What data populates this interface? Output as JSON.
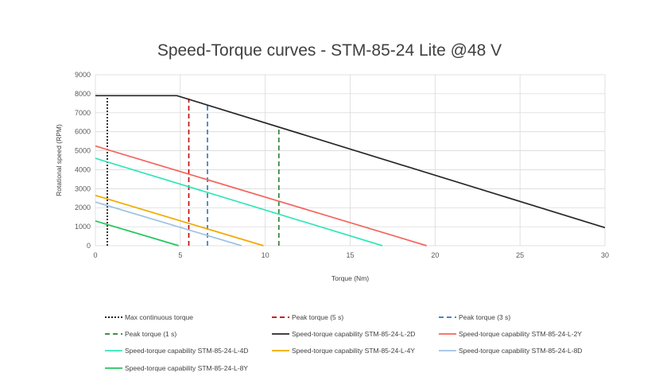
{
  "chart_data": {
    "type": "line",
    "title": "Speed-Torque curves - STM-85-24 Lite @48 V",
    "xlabel": "Torque (Nm)",
    "ylabel": "Rotational speed (RPM)",
    "xlim": [
      0,
      30
    ],
    "ylim": [
      0,
      9000
    ],
    "xticks": [
      "0",
      "5",
      "10",
      "15",
      "20",
      "25",
      "30"
    ],
    "yticks": [
      "0",
      "1000",
      "2000",
      "3000",
      "4000",
      "5000",
      "6000",
      "7000",
      "8000",
      "9000"
    ],
    "grid": true,
    "legend_position": "bottom",
    "series": [
      {
        "name": "Max continuous torque",
        "color": "#000000",
        "dash": "dot",
        "points": [
          [
            0.7,
            0
          ],
          [
            0.7,
            7900
          ]
        ]
      },
      {
        "name": "Peak torque (5 s)",
        "color": "#C00000",
        "dash": "dash",
        "points": [
          [
            5.5,
            0
          ],
          [
            5.5,
            7750
          ]
        ]
      },
      {
        "name": "Peak torque (3 s)",
        "color": "#2E75B6",
        "dash": "dash",
        "points": [
          [
            6.6,
            0
          ],
          [
            6.6,
            7500
          ]
        ]
      },
      {
        "name": "Peak torque (1 s)",
        "color": "#2E7D32",
        "dash": "dash",
        "points": [
          [
            10.8,
            0
          ],
          [
            10.8,
            6250
          ]
        ]
      },
      {
        "name": "Speed-torque capability STM-85-24-L-2D",
        "color": "#262626",
        "dash": "solid",
        "points": [
          [
            0,
            7900
          ],
          [
            4.8,
            7900
          ],
          [
            30,
            950
          ]
        ]
      },
      {
        "name": "Speed-torque capability STM-85-24-L-2Y",
        "color": "#F4645C",
        "dash": "solid",
        "points": [
          [
            0,
            5250
          ],
          [
            19.5,
            0
          ]
        ]
      },
      {
        "name": "Speed-torque capability STM-85-24-L-4D",
        "color": "#33E6B8",
        "dash": "solid",
        "points": [
          [
            0,
            4600
          ],
          [
            16.9,
            0
          ]
        ]
      },
      {
        "name": "Speed-torque capability STM-85-24-L-4Y",
        "color": "#F2A900",
        "dash": "solid",
        "points": [
          [
            0,
            2650
          ],
          [
            9.9,
            0
          ]
        ]
      },
      {
        "name": "Speed-torque capability STM-85-24-L-8D",
        "color": "#9DC3E6",
        "dash": "solid",
        "points": [
          [
            0,
            2300
          ],
          [
            8.6,
            0
          ]
        ]
      },
      {
        "name": "Speed-torque capability STM-85-24-L-8Y",
        "color": "#22C55E",
        "dash": "solid",
        "points": [
          [
            0,
            1300
          ],
          [
            4.9,
            0
          ]
        ]
      }
    ]
  }
}
